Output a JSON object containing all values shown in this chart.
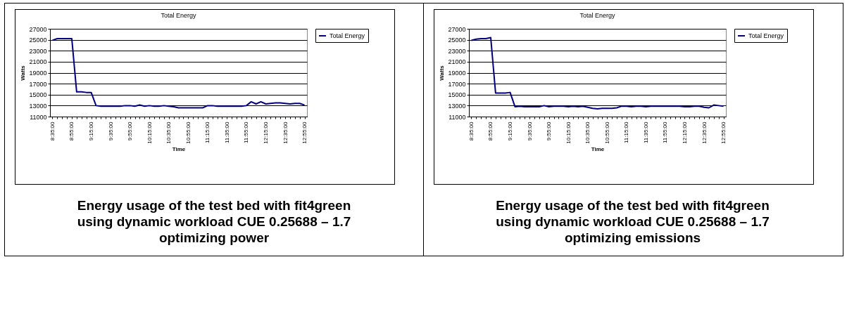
{
  "chart_data": [
    {
      "type": "line",
      "title": "Total Energy",
      "xlabel": "Time",
      "ylabel": "Watts",
      "categories": [
        "8:35:00",
        null,
        null,
        null,
        "8:55:00",
        null,
        null,
        null,
        "9:15:00",
        null,
        null,
        null,
        "9:35:00",
        null,
        null,
        null,
        "9:55:00",
        null,
        null,
        null,
        "10:15:00",
        null,
        null,
        null,
        "10:35:00",
        null,
        null,
        null,
        "10:55:00",
        null,
        null,
        null,
        "11:15:00",
        null,
        null,
        null,
        "11:35:00",
        null,
        null,
        null,
        "11:55:00",
        null,
        null,
        null,
        "12:15:00",
        null,
        null,
        null,
        "12:35:00",
        null,
        null,
        null,
        "12:55:00"
      ],
      "series": [
        {
          "name": "Total Energy",
          "color": "#000080",
          "values": [
            24900,
            25200,
            25200,
            25200,
            25200,
            15500,
            15500,
            15400,
            15400,
            13000,
            12900,
            12900,
            12900,
            12900,
            12900,
            13000,
            13000,
            12900,
            13100,
            12900,
            13000,
            12900,
            12900,
            13000,
            12900,
            12800,
            12600,
            12600,
            12600,
            12600,
            12600,
            12600,
            13000,
            13000,
            12900,
            12900,
            12900,
            12900,
            12900,
            12900,
            13000,
            13700,
            13300,
            13700,
            13300,
            13400,
            13500,
            13500,
            13400,
            13300,
            13400,
            13400,
            13100
          ]
        }
      ],
      "ylim": [
        11000,
        27000
      ],
      "yticks": [
        11000,
        13000,
        15000,
        17000,
        19000,
        21000,
        23000,
        25000,
        27000
      ],
      "grid": "y",
      "legend": "right",
      "marker": "none",
      "line_style": "solid",
      "annotations": [
        "Energy usage of the test bed with fit4green using dynamic workload CUE 0.25688 – 1.7 optimizing power"
      ]
    },
    {
      "type": "line",
      "title": "Total Energy",
      "xlabel": "Time",
      "ylabel": "Watts",
      "categories": [
        "8:35:00",
        null,
        null,
        null,
        "8:55:00",
        null,
        null,
        null,
        "9:15:00",
        null,
        null,
        null,
        "9:35:00",
        null,
        null,
        null,
        "9:55:00",
        null,
        null,
        null,
        "10:15:00",
        null,
        null,
        null,
        "10:35:00",
        null,
        null,
        null,
        "10:55:00",
        null,
        null,
        null,
        "11:15:00",
        null,
        null,
        null,
        "11:35:00",
        null,
        null,
        null,
        "11:55:00",
        null,
        null,
        null,
        "12:15:00",
        null,
        null,
        null,
        "12:35:00",
        null,
        null,
        null,
        "12:55:00"
      ],
      "series": [
        {
          "name": "Total Energy",
          "color": "#000080",
          "values": [
            24900,
            25100,
            25200,
            25200,
            25400,
            15300,
            15300,
            15300,
            15400,
            12800,
            12900,
            12800,
            12800,
            12800,
            12800,
            13000,
            12800,
            12900,
            12900,
            12900,
            12800,
            12900,
            12800,
            12900,
            12700,
            12500,
            12400,
            12500,
            12500,
            12500,
            12600,
            12900,
            12900,
            12800,
            12900,
            12900,
            12800,
            12900,
            12900,
            12900,
            12900,
            12900,
            12900,
            12900,
            12800,
            12800,
            12900,
            12900,
            12700,
            12600,
            13100,
            13000,
            12900
          ]
        }
      ],
      "ylim": [
        11000,
        27000
      ],
      "yticks": [
        11000,
        13000,
        15000,
        17000,
        19000,
        21000,
        23000,
        25000,
        27000
      ],
      "grid": "y",
      "legend": "right",
      "marker": "none",
      "line_style": "solid",
      "annotations": [
        "Energy usage of the test bed with fit4green using dynamic workload CUE 0.25688 – 1.7 optimizing emissions"
      ]
    }
  ]
}
